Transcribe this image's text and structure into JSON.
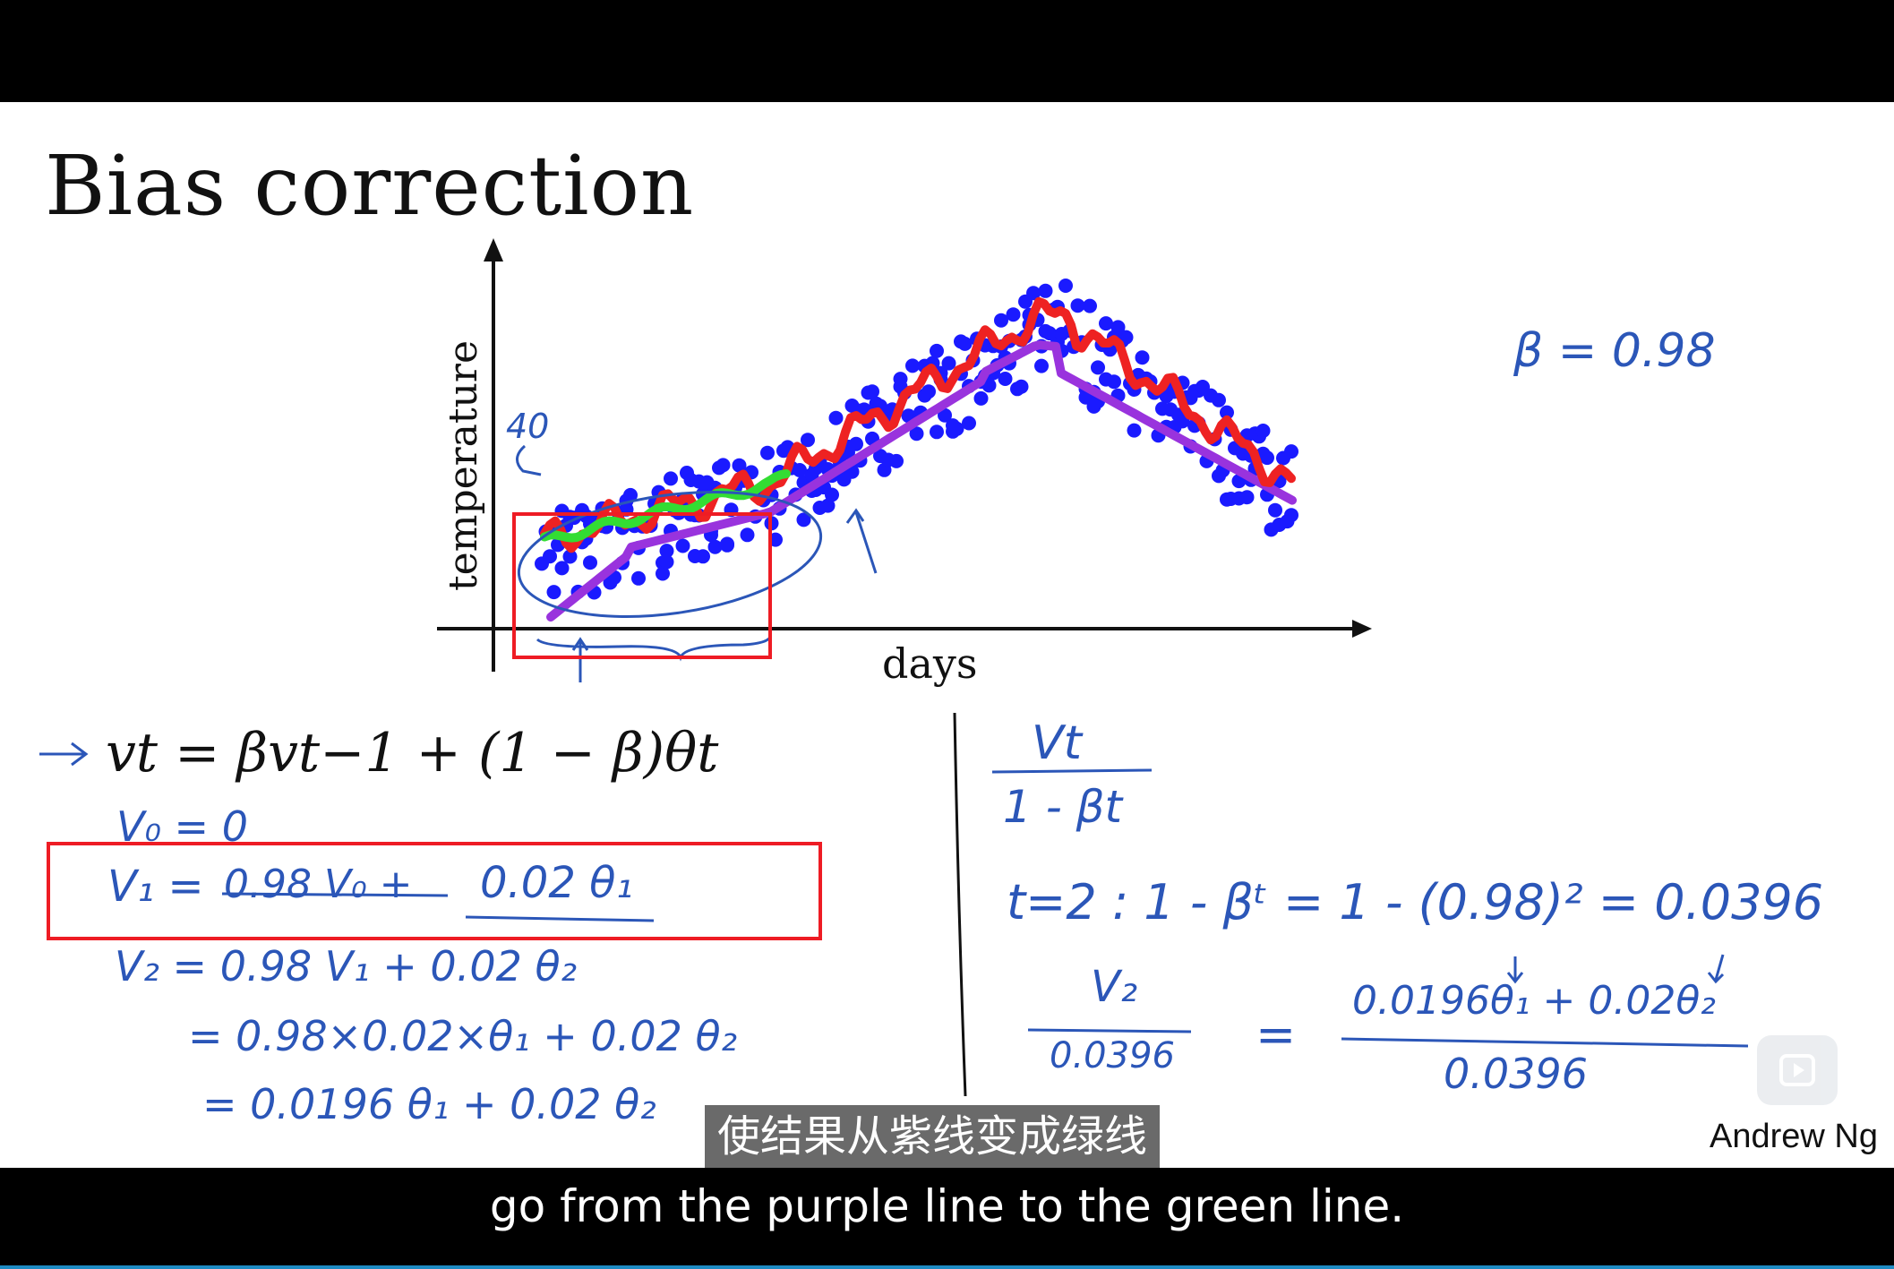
{
  "slide": {
    "title": "Bias correction",
    "author": "Andrew Ng"
  },
  "plot": {
    "y_axis_label": "temperature",
    "x_axis_label": "days",
    "colors": {
      "dots": "#1a1aff",
      "red": "#ee2222",
      "green": "#33dd33",
      "purple": "#9933dd"
    }
  },
  "equation": {
    "main": "vt = βvt−1 + (1 − β)θt"
  },
  "handwriting": {
    "beta": "β = 0.98",
    "annot_40": "40",
    "v0": "V₀ = 0",
    "v1_prefix": "V₁ =",
    "v1_struck": "0.98 V₀ +",
    "v1_term": "0.02 θ₁",
    "v2_line1": "V₂ = 0.98 V₁ + 0.02 θ₂",
    "v2_line2": "= 0.98×0.02×θ₁ + 0.02 θ₂",
    "v2_line3": "= 0.0196 θ₁ + 0.02 θ₂",
    "frac_num": "Vt",
    "frac_den": "1 - βt",
    "t2_line": "t=2 :   1 - βᵗ   =   1 - (0.98)² = 0.0396",
    "v2_frac_num": "V₂",
    "v2_frac_den": "0.0396",
    "equals": "=",
    "rhs_num": "0.0196θ₁ + 0.02θ₂",
    "rhs_den": "0.0396"
  },
  "subtitles": {
    "chinese": "使结果从紫线变成绿线",
    "english": "go from the purple line to the green line."
  },
  "player": {
    "play_icon": "play-icon"
  }
}
